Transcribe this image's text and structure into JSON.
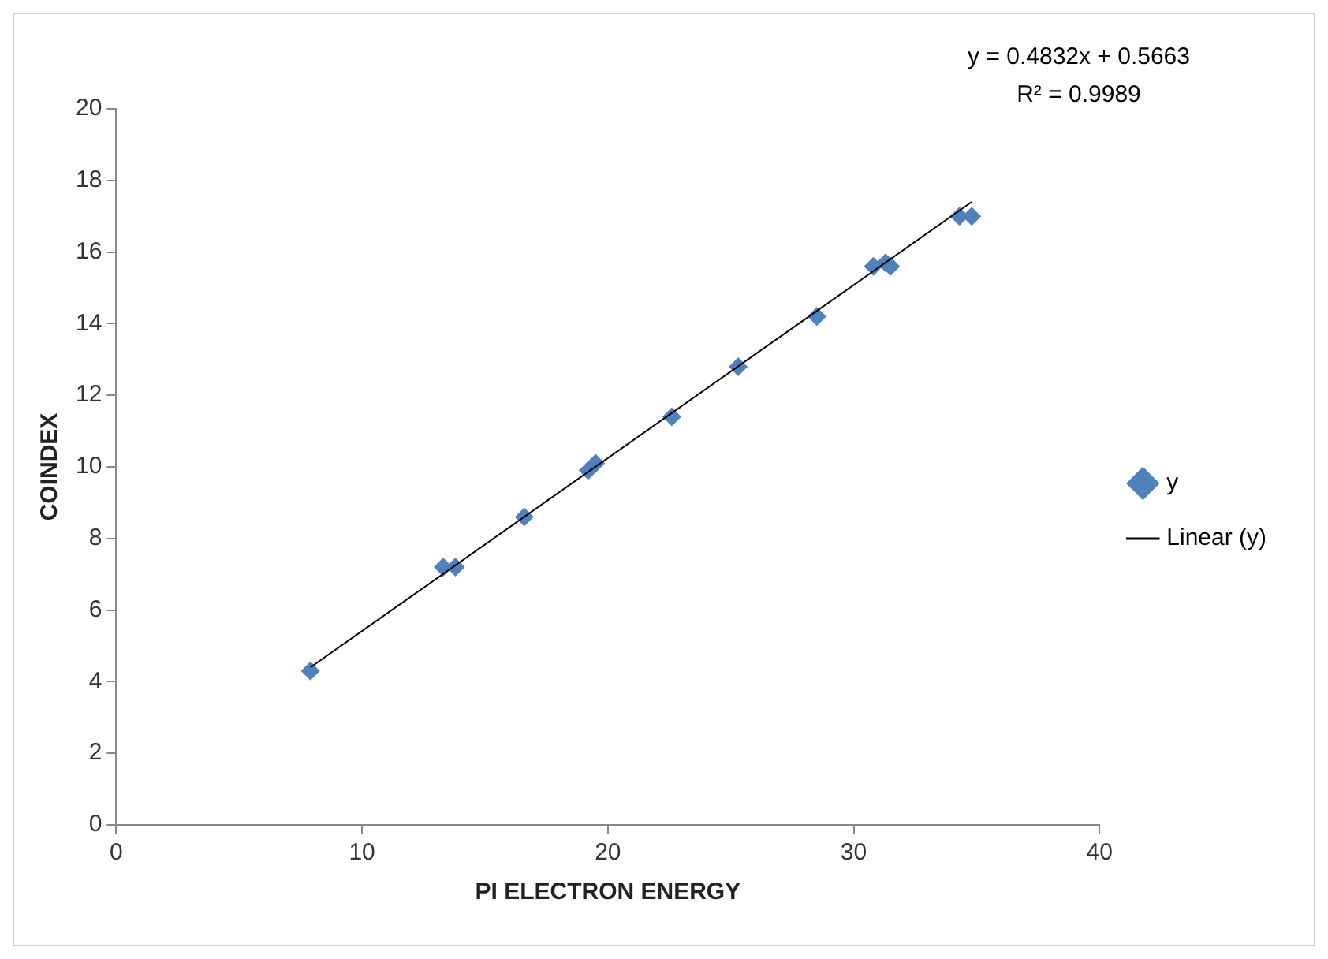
{
  "chart_data": {
    "type": "scatter",
    "xlabel": "PI ELECTRON ENERGY",
    "ylabel": "COINDEX",
    "marker": "diamond",
    "legend": "right",
    "grid": false,
    "xlim": [
      0,
      40
    ],
    "xticks": [
      0,
      10,
      20,
      30,
      40
    ],
    "ylim": [
      0,
      20
    ],
    "yticks": [
      0,
      2,
      4,
      6,
      8,
      10,
      12,
      14,
      16,
      18,
      20
    ],
    "annotations": [
      "y = 0.4832x + 0.5663",
      "R² = 0.9989"
    ],
    "series": [
      {
        "name": "y",
        "color": "#4f81bd",
        "x": [
          7.9,
          13.3,
          13.8,
          16.6,
          19.2,
          19.5,
          22.6,
          25.3,
          28.5,
          30.8,
          31.3,
          31.5,
          34.3,
          34.8
        ],
        "values": [
          4.3,
          7.2,
          7.2,
          8.6,
          9.9,
          10.1,
          11.4,
          12.8,
          14.2,
          15.6,
          15.7,
          15.6,
          17.0,
          17.0
        ]
      },
      {
        "name": "Linear (y)",
        "type": "line",
        "color": "#000000",
        "marker": "none",
        "x": [
          7.9,
          34.8
        ],
        "values": [
          4.4,
          17.4
        ]
      }
    ]
  }
}
